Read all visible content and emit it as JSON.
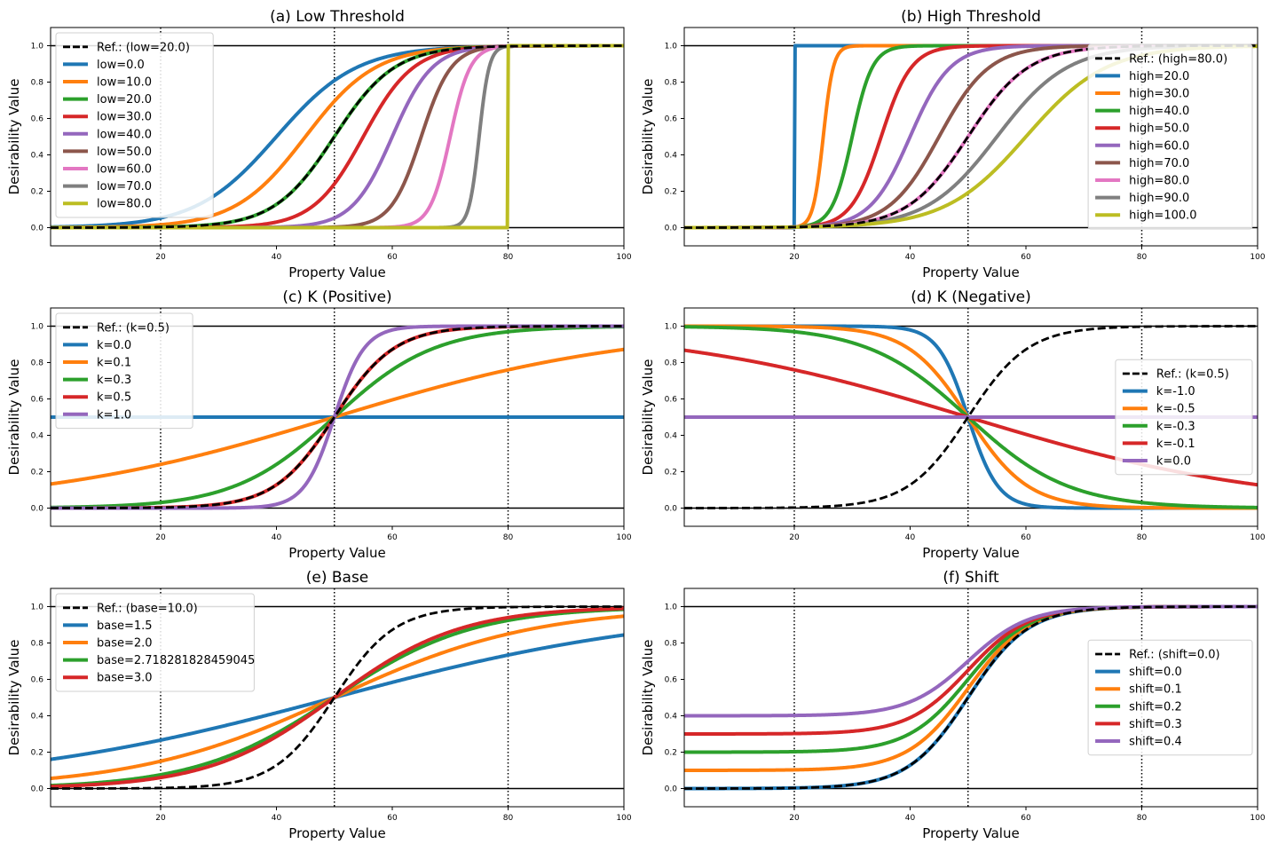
{
  "colors": [
    "#1f77b4",
    "#ff7f0e",
    "#2ca02c",
    "#d62728",
    "#9467bd",
    "#8c564b",
    "#e377c2",
    "#7f7f7f",
    "#bcbd22"
  ],
  "reference_color": "#000000",
  "chart_data": [
    {
      "type": "line",
      "title": "(a) Low Threshold",
      "xlabel": "Property Value",
      "ylabel": "Desirability Value",
      "xlim": [
        1,
        100
      ],
      "ylim": [
        -0.1,
        1.1
      ],
      "xticks": [
        "20",
        "40",
        "60",
        "80",
        "100"
      ],
      "yticks": [
        "0.0",
        "0.2",
        "0.4",
        "0.6",
        "0.8",
        "1.0"
      ],
      "vlines": [
        20,
        50,
        80
      ],
      "hlines": [
        0,
        1
      ],
      "legend_loc": "upper-left",
      "reference": {
        "name": "Ref.: (low=20.0)",
        "low": 20,
        "high": 80,
        "k": 0.5,
        "base": 10,
        "shift": 0
      },
      "series": [
        {
          "name": "low=0.0",
          "low": 0,
          "high": 80,
          "k": 0.5,
          "base": 10,
          "shift": 0
        },
        {
          "name": "low=10.0",
          "low": 10,
          "high": 80,
          "k": 0.5,
          "base": 10,
          "shift": 0
        },
        {
          "name": "low=20.0",
          "low": 20,
          "high": 80,
          "k": 0.5,
          "base": 10,
          "shift": 0
        },
        {
          "name": "low=30.0",
          "low": 30,
          "high": 80,
          "k": 0.5,
          "base": 10,
          "shift": 0
        },
        {
          "name": "low=40.0",
          "low": 40,
          "high": 80,
          "k": 0.5,
          "base": 10,
          "shift": 0
        },
        {
          "name": "low=50.0",
          "low": 50,
          "high": 80,
          "k": 0.5,
          "base": 10,
          "shift": 0
        },
        {
          "name": "low=60.0",
          "low": 60,
          "high": 80,
          "k": 0.5,
          "base": 10,
          "shift": 0
        },
        {
          "name": "low=70.0",
          "low": 70,
          "high": 80,
          "k": 0.5,
          "base": 10,
          "shift": 0
        },
        {
          "name": "low=80.0",
          "low": 80,
          "high": 80,
          "k": 0.5,
          "base": 10,
          "shift": 0
        }
      ]
    },
    {
      "type": "line",
      "title": "(b) High Threshold",
      "xlabel": "Property Value",
      "ylabel": "Desirability Value",
      "xlim": [
        1,
        100
      ],
      "ylim": [
        -0.1,
        1.1
      ],
      "xticks": [
        "20",
        "40",
        "60",
        "80",
        "100"
      ],
      "yticks": [
        "0.0",
        "0.2",
        "0.4",
        "0.6",
        "0.8",
        "1.0"
      ],
      "vlines": [
        20,
        50,
        80
      ],
      "hlines": [
        0,
        1
      ],
      "legend_loc": "center-right",
      "reference": {
        "name": "Ref.: (high=80.0)",
        "low": 20,
        "high": 80,
        "k": 0.5,
        "base": 10,
        "shift": 0
      },
      "series": [
        {
          "name": "high=20.0",
          "low": 20,
          "high": 20,
          "k": 0.5,
          "base": 10,
          "shift": 0
        },
        {
          "name": "high=30.0",
          "low": 20,
          "high": 30,
          "k": 0.5,
          "base": 10,
          "shift": 0
        },
        {
          "name": "high=40.0",
          "low": 20,
          "high": 40,
          "k": 0.5,
          "base": 10,
          "shift": 0
        },
        {
          "name": "high=50.0",
          "low": 20,
          "high": 50,
          "k": 0.5,
          "base": 10,
          "shift": 0
        },
        {
          "name": "high=60.0",
          "low": 20,
          "high": 60,
          "k": 0.5,
          "base": 10,
          "shift": 0
        },
        {
          "name": "high=70.0",
          "low": 20,
          "high": 70,
          "k": 0.5,
          "base": 10,
          "shift": 0
        },
        {
          "name": "high=80.0",
          "low": 20,
          "high": 80,
          "k": 0.5,
          "base": 10,
          "shift": 0
        },
        {
          "name": "high=90.0",
          "low": 20,
          "high": 90,
          "k": 0.5,
          "base": 10,
          "shift": 0
        },
        {
          "name": "high=100.0",
          "low": 20,
          "high": 100,
          "k": 0.5,
          "base": 10,
          "shift": 0
        }
      ]
    },
    {
      "type": "line",
      "title": "(c) K (Positive)",
      "xlabel": "Property Value",
      "ylabel": "Desirability Value",
      "xlim": [
        1,
        100
      ],
      "ylim": [
        -0.1,
        1.1
      ],
      "xticks": [
        "20",
        "40",
        "60",
        "80",
        "100"
      ],
      "yticks": [
        "0.0",
        "0.2",
        "0.4",
        "0.6",
        "0.8",
        "1.0"
      ],
      "vlines": [
        20,
        50,
        80
      ],
      "hlines": [
        0,
        1
      ],
      "legend_loc": "upper-left",
      "reference": {
        "name": "Ref.: (k=0.5)",
        "low": 20,
        "high": 80,
        "k": 0.5,
        "base": 10,
        "shift": 0
      },
      "series": [
        {
          "name": "k=0.0",
          "low": 20,
          "high": 80,
          "k": 0,
          "base": 10,
          "shift": 0
        },
        {
          "name": "k=0.1",
          "low": 20,
          "high": 80,
          "k": 0.1,
          "base": 10,
          "shift": 0
        },
        {
          "name": "k=0.3",
          "low": 20,
          "high": 80,
          "k": 0.3,
          "base": 10,
          "shift": 0
        },
        {
          "name": "k=0.5",
          "low": 20,
          "high": 80,
          "k": 0.5,
          "base": 10,
          "shift": 0
        },
        {
          "name": "k=1.0",
          "low": 20,
          "high": 80,
          "k": 1.0,
          "base": 10,
          "shift": 0
        }
      ]
    },
    {
      "type": "line",
      "title": "(d) K (Negative)",
      "xlabel": "Property Value",
      "ylabel": "Desirability Value",
      "xlim": [
        1,
        100
      ],
      "ylim": [
        -0.1,
        1.1
      ],
      "xticks": [
        "20",
        "40",
        "60",
        "80",
        "100"
      ],
      "yticks": [
        "0.0",
        "0.2",
        "0.4",
        "0.6",
        "0.8",
        "1.0"
      ],
      "vlines": [
        20,
        50,
        80
      ],
      "hlines": [
        0,
        1
      ],
      "legend_loc": "center-right",
      "reference": {
        "name": "Ref.: (k=0.5)",
        "low": 20,
        "high": 80,
        "k": 0.5,
        "base": 10,
        "shift": 0
      },
      "series": [
        {
          "name": "k=-1.0",
          "low": 20,
          "high": 80,
          "k": -1.0,
          "base": 10,
          "shift": 0
        },
        {
          "name": "k=-0.5",
          "low": 20,
          "high": 80,
          "k": -0.5,
          "base": 10,
          "shift": 0
        },
        {
          "name": "k=-0.3",
          "low": 20,
          "high": 80,
          "k": -0.3,
          "base": 10,
          "shift": 0
        },
        {
          "name": "k=-0.1",
          "low": 20,
          "high": 80,
          "k": -0.1,
          "base": 10,
          "shift": 0
        },
        {
          "name": "k=0.0",
          "low": 20,
          "high": 80,
          "k": 0,
          "base": 10,
          "shift": 0
        }
      ]
    },
    {
      "type": "line",
      "title": "(e) Base",
      "xlabel": "Property Value",
      "ylabel": "Desirability Value",
      "xlim": [
        1,
        100
      ],
      "ylim": [
        -0.1,
        1.1
      ],
      "xticks": [
        "20",
        "40",
        "60",
        "80",
        "100"
      ],
      "yticks": [
        "0.0",
        "0.2",
        "0.4",
        "0.6",
        "0.8",
        "1.0"
      ],
      "vlines": [
        20,
        50,
        80
      ],
      "hlines": [
        0,
        1
      ],
      "legend_loc": "upper-left",
      "reference": {
        "name": "Ref.: (base=10.0)",
        "low": 20,
        "high": 80,
        "k": 0.5,
        "base": 10,
        "shift": 0
      },
      "series": [
        {
          "name": "base=1.5",
          "low": 20,
          "high": 80,
          "k": 0.5,
          "base": 1.5,
          "shift": 0
        },
        {
          "name": "base=2.0",
          "low": 20,
          "high": 80,
          "k": 0.5,
          "base": 2.0,
          "shift": 0
        },
        {
          "name": "base=2.718281828459045",
          "low": 20,
          "high": 80,
          "k": 0.5,
          "base": 2.718281828459045,
          "shift": 0
        },
        {
          "name": "base=3.0",
          "low": 20,
          "high": 80,
          "k": 0.5,
          "base": 3.0,
          "shift": 0
        }
      ]
    },
    {
      "type": "line",
      "title": "(f) Shift",
      "xlabel": "Property Value",
      "ylabel": "Desirability Value",
      "xlim": [
        1,
        100
      ],
      "ylim": [
        -0.1,
        1.1
      ],
      "xticks": [
        "20",
        "40",
        "60",
        "80",
        "100"
      ],
      "yticks": [
        "0.0",
        "0.2",
        "0.4",
        "0.6",
        "0.8",
        "1.0"
      ],
      "vlines": [
        20,
        50,
        80
      ],
      "hlines": [
        0,
        1
      ],
      "legend_loc": "center-right",
      "reference": {
        "name": "Ref.: (shift=0.0)",
        "low": 20,
        "high": 80,
        "k": 0.5,
        "base": 10,
        "shift": 0
      },
      "series": [
        {
          "name": "shift=0.0",
          "low": 20,
          "high": 80,
          "k": 0.5,
          "base": 10,
          "shift": 0
        },
        {
          "name": "shift=0.1",
          "low": 20,
          "high": 80,
          "k": 0.5,
          "base": 10,
          "shift": 0.1
        },
        {
          "name": "shift=0.2",
          "low": 20,
          "high": 80,
          "k": 0.5,
          "base": 10,
          "shift": 0.2
        },
        {
          "name": "shift=0.3",
          "low": 20,
          "high": 80,
          "k": 0.5,
          "base": 10,
          "shift": 0.3
        },
        {
          "name": "shift=0.4",
          "low": 20,
          "high": 80,
          "k": 0.5,
          "base": 10,
          "shift": 0.4
        }
      ]
    }
  ]
}
